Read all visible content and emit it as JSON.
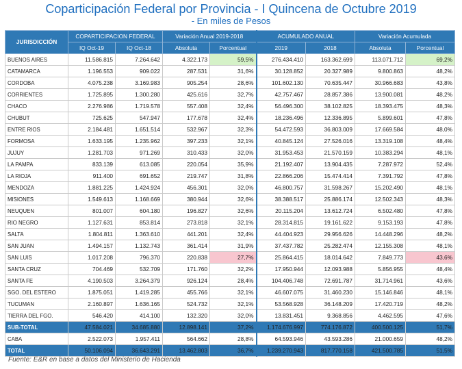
{
  "title": "Coparticipación Federal por Provincia - I Quincena de Octubre 2019",
  "subtitle": "- En miles de Pesos",
  "headers": {
    "jurisdiccion": "JURISDICCIÓN",
    "group1": "COPARTICIPACION FEDERAL",
    "group2": "Variación Anual 2019-2018",
    "group3": "ACUMULADO ANUAL",
    "group4": "Variación Acumulada",
    "sub": [
      "IQ Oct-19",
      "IQ Oct-18",
      "Absoluta",
      "Porcentual",
      "2019",
      "2018",
      "Absoluta",
      "Porcentual"
    ]
  },
  "highlight_colors": {
    "green": "#d5f2c8",
    "pink": "#f8c6cf",
    "header": "#2f79b5"
  },
  "rows": [
    {
      "name": "BUENOS AIRES",
      "v": [
        "11.586.815",
        "7.264.642",
        "4.322.173",
        "59,5%",
        "276.434.410",
        "163.362.699",
        "113.071.712",
        "69,2%"
      ],
      "hl": {
        "3": "green",
        "7": "green"
      }
    },
    {
      "name": "CATAMARCA",
      "v": [
        "1.196.553",
        "909.022",
        "287.531",
        "31,6%",
        "30.128.852",
        "20.327.989",
        "9.800.863",
        "48,2%"
      ]
    },
    {
      "name": "CORDOBA",
      "v": [
        "4.075.238",
        "3.169.983",
        "905.254",
        "28,6%",
        "101.602.130",
        "70.635.447",
        "30.966.683",
        "43,8%"
      ]
    },
    {
      "name": "CORRIENTES",
      "v": [
        "1.725.895",
        "1.300.280",
        "425.616",
        "32,7%",
        "42.757.467",
        "28.857.386",
        "13.900.081",
        "48,2%"
      ]
    },
    {
      "name": "CHACO",
      "v": [
        "2.276.986",
        "1.719.578",
        "557.408",
        "32,4%",
        "56.496.300",
        "38.102.825",
        "18.393.475",
        "48,3%"
      ]
    },
    {
      "name": "CHUBUT",
      "v": [
        "725.625",
        "547.947",
        "177.678",
        "32,4%",
        "18.236.496",
        "12.336.895",
        "5.899.601",
        "47,8%"
      ]
    },
    {
      "name": "ENTRE RIOS",
      "v": [
        "2.184.481",
        "1.651.514",
        "532.967",
        "32,3%",
        "54.472.593",
        "36.803.009",
        "17.669.584",
        "48,0%"
      ]
    },
    {
      "name": "FORMOSA",
      "v": [
        "1.633.195",
        "1.235.962",
        "397.233",
        "32,1%",
        "40.845.124",
        "27.526.016",
        "13.319.108",
        "48,4%"
      ]
    },
    {
      "name": "JUJUY",
      "v": [
        "1.281.703",
        "971.269",
        "310.433",
        "32,0%",
        "31.953.453",
        "21.570.159",
        "10.383.294",
        "48,1%"
      ]
    },
    {
      "name": "LA PAMPA",
      "v": [
        "833.139",
        "613.085",
        "220.054",
        "35,9%",
        "21.192.407",
        "13.904.435",
        "7.287.972",
        "52,4%"
      ]
    },
    {
      "name": "LA RIOJA",
      "v": [
        "911.400",
        "691.652",
        "219.747",
        "31,8%",
        "22.866.206",
        "15.474.414",
        "7.391.792",
        "47,8%"
      ]
    },
    {
      "name": "MENDOZA",
      "v": [
        "1.881.225",
        "1.424.924",
        "456.301",
        "32,0%",
        "46.800.757",
        "31.598.267",
        "15.202.490",
        "48,1%"
      ]
    },
    {
      "name": "MISIONES",
      "v": [
        "1.549.613",
        "1.168.669",
        "380.944",
        "32,6%",
        "38.388.517",
        "25.886.174",
        "12.502.343",
        "48,3%"
      ]
    },
    {
      "name": "NEUQUEN",
      "v": [
        "801.007",
        "604.180",
        "196.827",
        "32,6%",
        "20.115.204",
        "13.612.724",
        "6.502.480",
        "47,8%"
      ]
    },
    {
      "name": "RIO NEGRO",
      "v": [
        "1.127.631",
        "853.814",
        "273.818",
        "32,1%",
        "28.314.815",
        "19.161.622",
        "9.153.193",
        "47,8%"
      ]
    },
    {
      "name": "SALTA",
      "v": [
        "1.804.811",
        "1.363.610",
        "441.201",
        "32,4%",
        "44.404.923",
        "29.956.626",
        "14.448.296",
        "48,2%"
      ]
    },
    {
      "name": "SAN JUAN",
      "v": [
        "1.494.157",
        "1.132.743",
        "361.414",
        "31,9%",
        "37.437.782",
        "25.282.474",
        "12.155.308",
        "48,1%"
      ]
    },
    {
      "name": "SAN LUIS",
      "v": [
        "1.017.208",
        "796.370",
        "220.838",
        "27,7%",
        "25.864.415",
        "18.014.642",
        "7.849.773",
        "43,6%"
      ],
      "hl": {
        "3": "pink",
        "7": "pink"
      }
    },
    {
      "name": "SANTA CRUZ",
      "v": [
        "704.469",
        "532.709",
        "171.760",
        "32,2%",
        "17.950.944",
        "12.093.988",
        "5.856.955",
        "48,4%"
      ]
    },
    {
      "name": "SANTA FE",
      "v": [
        "4.190.503",
        "3.264.379",
        "926.124",
        "28,4%",
        "104.406.748",
        "72.691.787",
        "31.714.961",
        "43,6%"
      ]
    },
    {
      "name": "SGO. DEL ESTERO",
      "v": [
        "1.875.051",
        "1.419.285",
        "455.766",
        "32,1%",
        "46.607.075",
        "31.460.230",
        "15.146.846",
        "48,1%"
      ]
    },
    {
      "name": "TUCUMAN",
      "v": [
        "2.160.897",
        "1.636.165",
        "524.732",
        "32,1%",
        "53.568.928",
        "36.148.209",
        "17.420.719",
        "48,2%"
      ]
    },
    {
      "name": "TIERRA DEL FGO.",
      "v": [
        "546.420",
        "414.100",
        "132.320",
        "32,0%",
        "13.831.451",
        "9.368.856",
        "4.462.595",
        "47,6%"
      ]
    }
  ],
  "subtotal": {
    "name": "SUB-TOTAL",
    "v": [
      "47.584.021",
      "34.685.880",
      "12.898.141",
      "37,2%",
      "1.174.676.997",
      "774.176.872",
      "400.500.125",
      "51,7%"
    ]
  },
  "caba": {
    "name": "CABA",
    "v": [
      "2.522.073",
      "1.957.411",
      "564.662",
      "28,8%",
      "64.593.946",
      "43.593.286",
      "21.000.659",
      "48,2%"
    ]
  },
  "total": {
    "name": "TOTAL",
    "v": [
      "50.106.094",
      "36.643.291",
      "13.462.803",
      "36,7%",
      "1.239.270.943",
      "817.770.158",
      "421.500.785",
      "51,5%"
    ]
  },
  "source": "Fuente: E&R en base a datos del Ministerio de Hacienda"
}
